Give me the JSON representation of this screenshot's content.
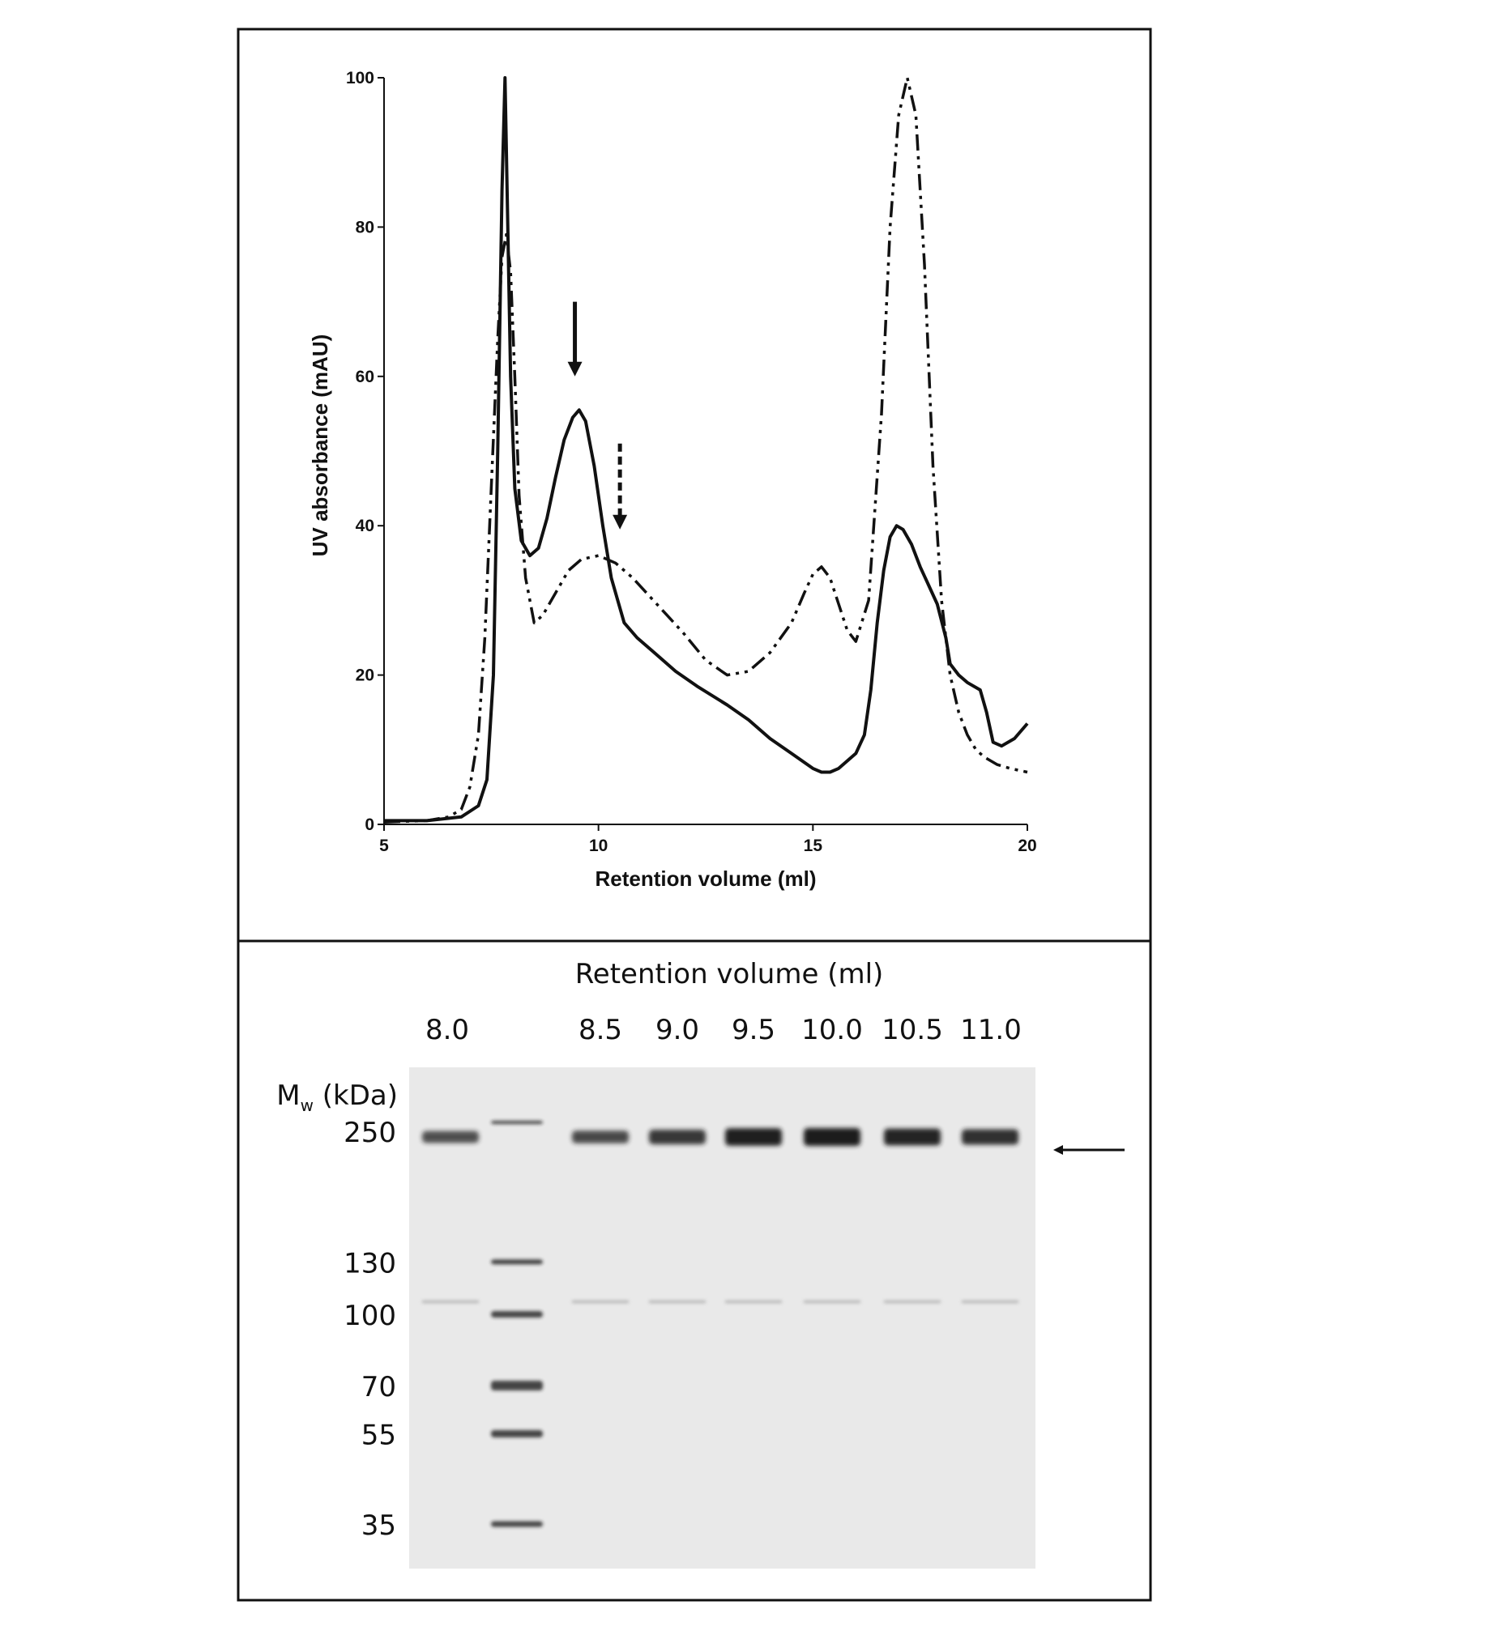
{
  "chart_data": [
    {
      "type": "line",
      "title": "",
      "xlabel": "Retention volume (ml)",
      "ylabel": "UV absorbance (mAU)",
      "xlim": [
        5,
        20
      ],
      "ylim": [
        0,
        100
      ],
      "x_ticks": [
        5,
        10,
        15,
        20
      ],
      "y_ticks": [
        0,
        20,
        40,
        60,
        80,
        100
      ],
      "grid": false,
      "legend": "none",
      "series": [
        {
          "style": "solid",
          "x": [
            5.0,
            6.0,
            6.8,
            7.2,
            7.4,
            7.55,
            7.65,
            7.75,
            7.82,
            7.88,
            7.95,
            8.05,
            8.2,
            8.4,
            8.6,
            8.8,
            9.0,
            9.2,
            9.4,
            9.55,
            9.7,
            9.9,
            10.1,
            10.3,
            10.6,
            10.9,
            11.3,
            11.8,
            12.3,
            13.0,
            13.5,
            14.0,
            14.5,
            15.0,
            15.2,
            15.4,
            15.6,
            15.8,
            16.0,
            16.2,
            16.35,
            16.5,
            16.65,
            16.8,
            16.95,
            17.1,
            17.3,
            17.5,
            17.7,
            17.9,
            18.1,
            18.2,
            18.4,
            18.6,
            18.9,
            19.05,
            19.2,
            19.4,
            19.7,
            20.0
          ],
          "y": [
            0.5,
            0.5,
            1.0,
            2.5,
            6.0,
            20.0,
            50.0,
            85.0,
            100.0,
            82.0,
            60.0,
            45.0,
            38.0,
            36.0,
            37.0,
            41.0,
            46.5,
            51.5,
            54.5,
            55.5,
            54.0,
            48.0,
            40.0,
            33.0,
            27.0,
            25.0,
            23.0,
            20.5,
            18.5,
            16.0,
            14.0,
            11.5,
            9.5,
            7.5,
            7.0,
            7.0,
            7.5,
            8.5,
            9.5,
            12.0,
            18.0,
            27.0,
            34.0,
            38.5,
            40.0,
            39.5,
            37.5,
            34.5,
            32.0,
            29.5,
            25.0,
            21.5,
            20.0,
            19.0,
            18.0,
            15.0,
            11.0,
            10.5,
            11.5,
            13.5
          ]
        },
        {
          "style": "dash-dot-dot",
          "x": [
            5.0,
            6.0,
            6.5,
            6.8,
            7.0,
            7.2,
            7.35,
            7.5,
            7.65,
            7.75,
            7.85,
            7.95,
            8.05,
            8.15,
            8.3,
            8.5,
            8.7,
            9.0,
            9.3,
            9.6,
            10.0,
            10.4,
            10.8,
            11.2,
            11.6,
            12.0,
            12.5,
            13.0,
            13.5,
            14.0,
            14.5,
            14.8,
            15.0,
            15.2,
            15.4,
            15.6,
            15.8,
            16.0,
            16.3,
            16.6,
            16.8,
            17.0,
            17.2,
            17.4,
            17.6,
            17.8,
            18.0,
            18.2,
            18.4,
            18.6,
            18.8,
            19.0,
            19.3,
            19.6,
            20.0
          ],
          "y": [
            0.3,
            0.5,
            1.0,
            2.0,
            5.0,
            12.0,
            25.0,
            45.0,
            65.0,
            76.0,
            79.0,
            74.0,
            60.0,
            44.0,
            33.0,
            27.0,
            28.0,
            31.0,
            34.0,
            35.5,
            36.0,
            35.0,
            33.0,
            30.5,
            28.0,
            25.5,
            22.0,
            20.0,
            20.5,
            23.0,
            27.0,
            31.0,
            33.5,
            34.5,
            33.0,
            29.5,
            26.0,
            24.5,
            30.0,
            55.0,
            80.0,
            95.0,
            100.0,
            95.0,
            75.0,
            48.0,
            30.0,
            20.0,
            15.0,
            12.0,
            10.0,
            9.0,
            8.0,
            7.5,
            7.0
          ]
        }
      ],
      "annotations": [
        {
          "type": "arrow",
          "style": "solid",
          "x": 9.45,
          "y_from": 70.0,
          "y_to": 60.0
        },
        {
          "type": "arrow",
          "style": "dashed",
          "x": 10.5,
          "y_from": 51.0,
          "y_to": 39.5
        }
      ]
    }
  ],
  "gel": {
    "title": "Retention volume (ml)",
    "mw_label_main": "M",
    "mw_label_sub": "w",
    "mw_label_unit": " (kDa)",
    "lane_labels": [
      "8.0",
      "",
      "8.5",
      "9.0",
      "9.5",
      "10.0",
      "10.5",
      "11.0"
    ],
    "marker_labels": [
      "250",
      "130",
      "100",
      "70",
      "55",
      "35"
    ],
    "ladder_bands_kda": [
      250,
      130,
      100,
      70,
      55,
      35
    ],
    "band_intensity": [
      0.55,
      0,
      0.6,
      0.75,
      0.97,
      1.0,
      0.92,
      0.82
    ]
  },
  "colors": {
    "line": "#111111",
    "gel_background": "#e9e9e9",
    "band": "#1a1a1a"
  }
}
